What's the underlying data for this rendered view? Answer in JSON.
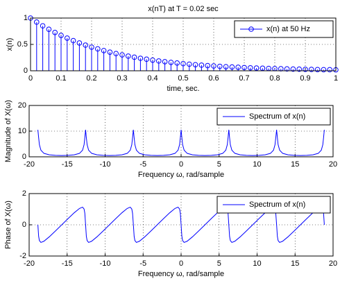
{
  "chart_data": [
    {
      "type": "stem",
      "title": "x(nT) at T = 0.02 sec",
      "xlabel": "time, sec.",
      "ylabel": "x(n)",
      "x": [
        0,
        0.02,
        0.04,
        0.06,
        0.08,
        0.1,
        0.12,
        0.14,
        0.16,
        0.18,
        0.2,
        0.22,
        0.24,
        0.26,
        0.28,
        0.3,
        0.32,
        0.34,
        0.36,
        0.38,
        0.4,
        0.42,
        0.44,
        0.46,
        0.48,
        0.5,
        0.52,
        0.54,
        0.56,
        0.58,
        0.6,
        0.62,
        0.64,
        0.66,
        0.68,
        0.7,
        0.72,
        0.74,
        0.76,
        0.78,
        0.8,
        0.82,
        0.84,
        0.86,
        0.88,
        0.9,
        0.92,
        0.94,
        0.96,
        0.98,
        1
      ],
      "series": [
        {
          "name": "x(n) at 50 Hz",
          "color": "#0000ff",
          "values": [
            1,
            0.923,
            0.852,
            0.787,
            0.726,
            0.67,
            0.619,
            0.571,
            0.527,
            0.487,
            0.449,
            0.415,
            0.383,
            0.353,
            0.326,
            0.301,
            0.278,
            0.257,
            0.237,
            0.219,
            0.202,
            0.186,
            0.172,
            0.159,
            0.147,
            0.135,
            0.125,
            0.115,
            0.107,
            0.098,
            0.091,
            0.084,
            0.077,
            0.071,
            0.066,
            0.061,
            0.056,
            0.052,
            0.048,
            0.044,
            0.041,
            0.038,
            0.035,
            0.032,
            0.03,
            0.027,
            0.025,
            0.023,
            0.021,
            0.02,
            0.018
          ]
        }
      ],
      "xlim": [
        0,
        1
      ],
      "xticks": [
        0,
        0.1,
        0.2,
        0.3,
        0.4,
        0.5,
        0.6,
        0.7,
        0.8,
        0.9,
        1
      ],
      "ylim": [
        0,
        1
      ],
      "yticks": [
        0,
        0.5,
        1
      ],
      "grid": true,
      "legend": "upper right"
    },
    {
      "type": "line",
      "xlabel": "Frequency ω, rad/sample",
      "ylabel": "Magnitude of X(ω)",
      "x": [
        -18.85,
        -18.75,
        -18.65,
        -18.45,
        -18.05,
        -17.35,
        -16.55,
        -15.71,
        -14.87,
        -14.07,
        -13.37,
        -12.97,
        -12.77,
        -12.67,
        -12.57,
        -12.47,
        -12.37,
        -12.17,
        -11.77,
        -11.07,
        -10.27,
        -9.43,
        -8.59,
        -7.79,
        -7.09,
        -6.69,
        -6.49,
        -6.39,
        -6.28,
        -6.18,
        -6.08,
        -5.88,
        -5.48,
        -4.78,
        -3.98,
        -3.14,
        -2.3,
        -1.5,
        -0.8,
        -0.4,
        -0.2,
        -0.1,
        0,
        0.1,
        0.2,
        0.4,
        0.8,
        1.5,
        2.3,
        3.14,
        3.98,
        4.78,
        5.48,
        5.88,
        6.08,
        6.18,
        6.28,
        6.38,
        6.48,
        6.68,
        7.08,
        7.78,
        8.58,
        9.42,
        10.26,
        11.06,
        11.76,
        12.16,
        12.36,
        12.46,
        12.57,
        12.67,
        12.77,
        12.97,
        13.37,
        14.07,
        14.87,
        15.71,
        16.55,
        17.35,
        18.05,
        18.45,
        18.65,
        18.75,
        18.85
      ],
      "series": [
        {
          "name": "Spectrum of x(n)",
          "color": "#0000ff",
          "values": [
            10.53,
            7.44,
            4.71,
            2.57,
            1.34,
            0.77,
            0.58,
            0.52,
            0.58,
            0.77,
            1.34,
            2.57,
            4.71,
            7.44,
            10.53,
            7.44,
            4.71,
            2.57,
            1.34,
            0.77,
            0.58,
            0.52,
            0.58,
            0.77,
            1.34,
            2.57,
            4.71,
            7.44,
            10.53,
            7.44,
            4.71,
            2.57,
            1.34,
            0.77,
            0.58,
            0.52,
            0.58,
            0.77,
            1.34,
            2.57,
            4.71,
            7.44,
            10.53,
            7.44,
            4.71,
            2.57,
            1.34,
            0.77,
            0.58,
            0.52,
            0.58,
            0.77,
            1.34,
            2.57,
            4.71,
            7.44,
            10.53,
            7.44,
            4.71,
            2.57,
            1.34,
            0.77,
            0.58,
            0.52,
            0.58,
            0.77,
            1.34,
            2.57,
            4.71,
            7.44,
            10.53,
            7.44,
            4.71,
            2.57,
            1.34,
            0.77,
            0.58,
            0.52,
            0.58,
            0.77,
            1.34,
            2.57,
            4.71,
            7.44,
            10.53
          ]
        }
      ],
      "xlim": [
        -20,
        20
      ],
      "xticks": [
        -20,
        -15,
        -10,
        -5,
        0,
        5,
        10,
        15,
        20
      ],
      "ylim": [
        0,
        20
      ],
      "yticks": [
        0,
        10,
        20
      ],
      "grid": true,
      "legend": "upper right"
    },
    {
      "type": "line",
      "xlabel": "Frequency ω, rad/sample",
      "ylabel": "Phase of X(ω)",
      "x": [
        -18.85,
        -18.75,
        -18.65,
        -18.45,
        -18.05,
        -17.35,
        -16.55,
        -15.71,
        -14.87,
        -14.07,
        -13.37,
        -12.97,
        -12.77,
        -12.67,
        -12.57,
        -12.47,
        -12.37,
        -12.17,
        -11.77,
        -11.07,
        -10.27,
        -9.43,
        -8.59,
        -7.79,
        -7.09,
        -6.69,
        -6.49,
        -6.39,
        -6.28,
        -6.18,
        -6.08,
        -5.88,
        -5.48,
        -4.78,
        -3.98,
        -3.14,
        -2.3,
        -1.5,
        -0.8,
        -0.4,
        -0.2,
        -0.1,
        0,
        0.1,
        0.2,
        0.4,
        0.8,
        1.5,
        2.3,
        3.14,
        3.98,
        4.78,
        5.48,
        5.88,
        6.08,
        6.18,
        6.28,
        6.38,
        6.48,
        6.68,
        7.08,
        7.78,
        8.58,
        9.42,
        10.26,
        11.06,
        11.76,
        12.16,
        12.36,
        12.46,
        12.57,
        12.67,
        12.77,
        12.97,
        13.37,
        14.07,
        14.87,
        15.71,
        16.55,
        17.35,
        18.05,
        18.45,
        18.65,
        18.75,
        18.85
      ],
      "series": [
        {
          "name": "Spectrum of x(n)",
          "color": "#0000ff",
          "values": [
            0,
            -0.74,
            -1.01,
            -1.13,
            -1.05,
            -0.77,
            -0.4,
            0,
            0.4,
            0.77,
            1.05,
            1.13,
            1.01,
            0.74,
            0,
            -0.74,
            -1.01,
            -1.13,
            -1.05,
            -0.77,
            -0.4,
            0,
            0.4,
            0.77,
            1.05,
            1.13,
            1.01,
            0.74,
            0,
            -0.74,
            -1.01,
            -1.13,
            -1.05,
            -0.77,
            -0.4,
            0,
            0.4,
            0.77,
            1.05,
            1.13,
            1.01,
            0.74,
            0,
            -0.74,
            -1.01,
            -1.13,
            -1.05,
            -0.77,
            -0.4,
            0,
            0.4,
            0.77,
            1.05,
            1.13,
            1.01,
            0.74,
            0,
            -0.74,
            -1.01,
            -1.13,
            -1.05,
            -0.77,
            -0.4,
            0,
            0.4,
            0.77,
            1.05,
            1.13,
            1.01,
            0.74,
            0,
            -0.74,
            -1.01,
            -1.13,
            -1.05,
            -0.77,
            -0.4,
            0,
            0.4,
            0.77,
            1.05,
            1.13,
            1.01,
            0.74,
            0
          ]
        }
      ],
      "xlim": [
        -20,
        20
      ],
      "xticks": [
        -20,
        -15,
        -10,
        -5,
        0,
        5,
        10,
        15,
        20
      ],
      "ylim": [
        -2,
        2
      ],
      "yticks": [
        -2,
        0,
        2
      ],
      "grid": true,
      "legend": "upper right"
    }
  ]
}
